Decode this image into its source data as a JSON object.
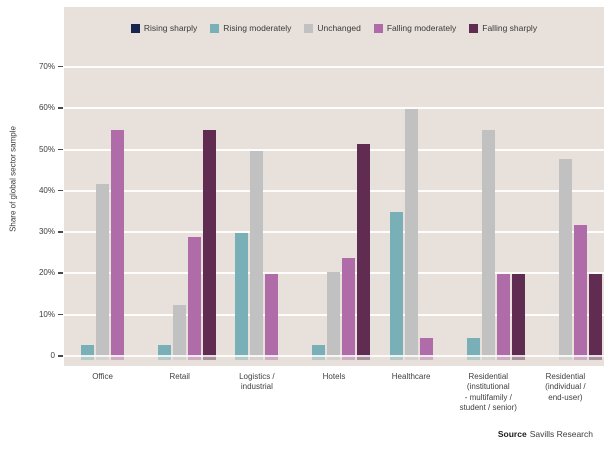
{
  "chart_data": {
    "type": "bar",
    "title": "",
    "ylabel": "Share of global sector sample",
    "ylim": [
      0,
      70
    ],
    "ytick_labels_bottom_up": [
      "0",
      "10%",
      "20%",
      "30%",
      "40%",
      "50%",
      "60%",
      "70%"
    ],
    "grid": true,
    "legend_position": "top",
    "categories": [
      "Office",
      "Retail",
      "Logistics / industrial",
      "Hotels",
      "Healthcare",
      "Residential (institutional - multifamily / student / senior)",
      "Residential (individual / end-user)"
    ],
    "category_display_lines": [
      [
        "Office"
      ],
      [
        "Retail"
      ],
      [
        "Logistics /",
        "industrial"
      ],
      [
        "Hotels"
      ],
      [
        "Healthcare"
      ],
      [
        "Residential",
        "(institutional",
        "- multifamily /",
        "student / senior)"
      ],
      [
        "Residential",
        "(individual /",
        "end-user)"
      ]
    ],
    "series": [
      {
        "name": "Rising sharply",
        "color": "#18254e",
        "values": [
          0,
          0,
          0,
          0,
          0,
          0,
          0
        ]
      },
      {
        "name": "Rising moderately",
        "color": "#79afb6",
        "values": [
          3,
          3,
          30,
          3,
          35,
          4.5,
          0
        ]
      },
      {
        "name": "Unchanged",
        "color": "#c2c1c1",
        "values": [
          42,
          12.5,
          50,
          20.5,
          60,
          55,
          48
        ]
      },
      {
        "name": "Falling moderately",
        "color": "#b06ca8",
        "values": [
          55,
          29,
          20,
          24,
          4.5,
          20,
          32
        ]
      },
      {
        "name": "Falling sharply",
        "color": "#602c51",
        "values": [
          0,
          55,
          0,
          51.5,
          0,
          20,
          20
        ]
      }
    ]
  },
  "source": {
    "label": "Source",
    "text": "Savills Research"
  },
  "colors": {
    "panel_background": "#e8e0da",
    "gridline": "#ffffff",
    "axis_text": "#3d3d3d"
  }
}
